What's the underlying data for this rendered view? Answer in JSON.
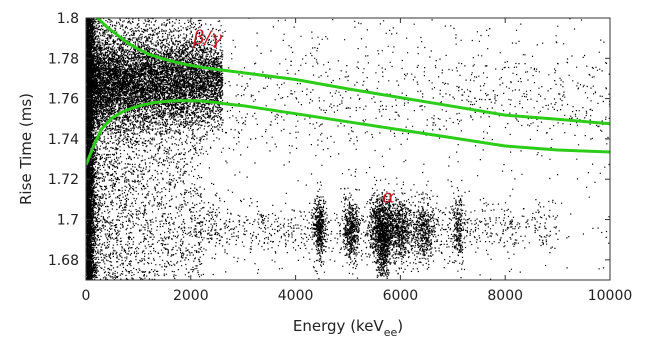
{
  "chart_data": {
    "type": "scatter",
    "title": "",
    "xlabel": "Energy (keV",
    "xlabel_sub": "ee",
    "xlabel_close": ")",
    "ylabel": "Rise Time (ms)",
    "xlim": [
      0,
      10000
    ],
    "ylim": [
      1.67,
      1.8
    ],
    "x_ticks": [
      0,
      2000,
      4000,
      6000,
      8000,
      10000
    ],
    "x_tick_labels": [
      "0",
      "2000",
      "4000",
      "6000",
      "8000",
      "10000"
    ],
    "y_ticks": [
      1.68,
      1.7,
      1.72,
      1.74,
      1.76,
      1.78,
      1.8
    ],
    "y_tick_labels": [
      "1.68",
      "1.7",
      "1.72",
      "1.74",
      "1.76",
      "1.78",
      "1.8"
    ],
    "grid": false,
    "legend": "none",
    "colors": {
      "points": "#000000",
      "band": "#2ecc1a",
      "annotation": "#c8141e"
    },
    "annotations": [
      {
        "text": "β/γ",
        "x": 2050,
        "y": 1.787
      },
      {
        "text": "α",
        "x": 5650,
        "y": 1.7085
      }
    ],
    "series": [
      {
        "type": "line",
        "x": [
          0,
          200,
          400,
          600,
          800,
          1000,
          1200,
          1500,
          1800,
          2100,
          2400,
          2700,
          3000,
          4000,
          5000,
          6000,
          7000,
          8000,
          9000,
          10000
        ],
        "y": [
          1.812,
          1.8005,
          1.7955,
          1.7915,
          1.7875,
          1.7845,
          1.782,
          1.7795,
          1.7775,
          1.776,
          1.7748,
          1.7738,
          1.7728,
          1.7695,
          1.7648,
          1.7605,
          1.7562,
          1.7518,
          1.7498,
          1.7475
        ]
      },
      {
        "type": "line",
        "x": [
          0,
          150,
          300,
          500,
          700,
          900,
          1100,
          1300,
          1600,
          1900,
          2200,
          2500,
          2700,
          3000,
          4000,
          5000,
          6000,
          7000,
          8000,
          9000,
          10000
        ],
        "y": [
          1.727,
          1.737,
          1.745,
          1.7505,
          1.7535,
          1.7555,
          1.757,
          1.758,
          1.7588,
          1.759,
          1.7588,
          1.758,
          1.7573,
          1.7565,
          1.7525,
          1.7485,
          1.7445,
          1.7405,
          1.7365,
          1.7345,
          1.7335
        ]
      }
    ],
    "point_populations": [
      {
        "region": "low-energy band",
        "x": [
          0,
          2500
        ],
        "y_center": 1.768,
        "y_spread": 0.012,
        "density": "very high"
      },
      {
        "region": "low-energy tail",
        "x": [
          0,
          2000
        ],
        "y": [
          1.67,
          1.8
        ],
        "density": "high"
      },
      {
        "region": "beta/gamma band",
        "x": [
          2500,
          10000
        ],
        "y_center": 1.76,
        "y_spread": 0.015,
        "density": "sparse"
      },
      {
        "region": "alpha clusters",
        "x_centers": [
          2400,
          4450,
          5050,
          5650,
          6000,
          6450,
          7100
        ],
        "y_center": 1.695,
        "y_spread": 0.01,
        "density": "medium"
      },
      {
        "region": "background",
        "x": [
          0,
          10000
        ],
        "y": [
          1.67,
          1.8
        ],
        "density": "low"
      }
    ]
  }
}
